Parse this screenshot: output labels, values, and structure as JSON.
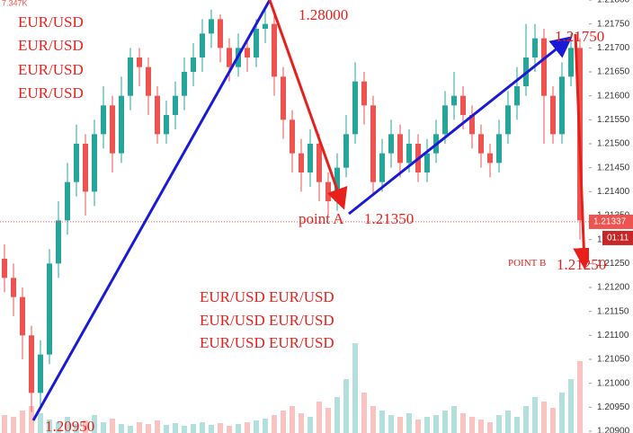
{
  "chart_data": {
    "type": "candlestick",
    "volume_label": "7.347K",
    "open": [
      1.2126,
      1.2122,
      1.2118,
      1.211,
      1.2098,
      1.2106,
      1.2125,
      1.2134,
      1.2142,
      1.215,
      1.214,
      1.2152,
      1.2158,
      1.2148,
      1.216,
      1.2168,
      1.2166,
      1.216,
      1.2152,
      1.2156,
      1.216,
      1.2165,
      1.2168,
      1.2173,
      1.2176,
      1.217,
      1.2166,
      1.217,
      1.2168,
      1.2174,
      1.2175,
      1.2164,
      1.2155,
      1.2148,
      1.2144,
      1.215,
      1.2142,
      1.2138,
      1.2145,
      1.2152,
      1.2163,
      1.2158,
      1.2142,
      1.2148,
      1.2152,
      1.2146,
      1.215,
      1.2144,
      1.2148,
      1.2152,
      1.2158,
      1.216,
      1.2156,
      1.2152,
      1.2148,
      1.2146,
      1.2152,
      1.2158,
      1.2162,
      1.2168,
      1.2172,
      1.216,
      1.2152,
      1.2164,
      1.217
    ],
    "high": [
      1.2129,
      1.2125,
      1.212,
      1.2112,
      1.2109,
      1.2128,
      1.2138,
      1.2146,
      1.2154,
      1.2152,
      1.2155,
      1.2162,
      1.216,
      1.2164,
      1.217,
      1.217,
      1.2168,
      1.2162,
      1.2159,
      1.2163,
      1.2168,
      1.2171,
      1.2176,
      1.2178,
      1.2177,
      1.2172,
      1.2173,
      1.2172,
      1.2176,
      1.2178,
      1.2177,
      1.2166,
      1.2157,
      1.2151,
      1.2153,
      1.2152,
      1.2144,
      1.2148,
      1.2156,
      1.2167,
      1.2165,
      1.216,
      1.2151,
      1.2155,
      1.2154,
      1.2153,
      1.2152,
      1.2151,
      1.2155,
      1.2161,
      1.2165,
      1.2162,
      1.2158,
      1.2154,
      1.215,
      1.2155,
      1.2161,
      1.2166,
      1.2175,
      1.2175,
      1.2174,
      1.2162,
      1.2167,
      1.2173,
      1.2172
    ],
    "low": [
      1.2119,
      1.2114,
      1.2105,
      1.2094,
      1.2095,
      1.2104,
      1.2122,
      1.2131,
      1.2139,
      1.2135,
      1.2137,
      1.2149,
      1.2144,
      1.2146,
      1.2157,
      1.2162,
      1.2156,
      1.215,
      1.215,
      1.2153,
      1.2157,
      1.2162,
      1.2165,
      1.217,
      1.2167,
      1.2163,
      1.2164,
      1.2165,
      1.2166,
      1.2171,
      1.216,
      1.2151,
      1.2144,
      1.214,
      1.2141,
      1.2138,
      1.2135,
      1.2136,
      1.2143,
      1.215,
      1.2154,
      1.2139,
      1.214,
      1.2145,
      1.2143,
      1.2144,
      1.2142,
      1.2142,
      1.2146,
      1.215,
      1.2155,
      1.2153,
      1.2149,
      1.2145,
      1.2143,
      1.2144,
      1.215,
      1.2155,
      1.216,
      1.2165,
      1.215,
      1.215,
      1.215,
      1.2162,
      1.213
    ],
    "close": [
      1.2122,
      1.2118,
      1.211,
      1.2098,
      1.2106,
      1.2125,
      1.2134,
      1.2142,
      1.215,
      1.214,
      1.2152,
      1.2158,
      1.2148,
      1.216,
      1.2168,
      1.2166,
      1.216,
      1.2152,
      1.2156,
      1.216,
      1.2165,
      1.2168,
      1.2173,
      1.2176,
      1.217,
      1.2166,
      1.217,
      1.2168,
      1.2174,
      1.2175,
      1.2164,
      1.2155,
      1.2148,
      1.2144,
      1.215,
      1.2142,
      1.2138,
      1.2145,
      1.2152,
      1.2163,
      1.2158,
      1.2142,
      1.2148,
      1.2152,
      1.2146,
      1.215,
      1.2144,
      1.2148,
      1.2152,
      1.2158,
      1.216,
      1.2156,
      1.2152,
      1.2148,
      1.2146,
      1.2152,
      1.2158,
      1.2162,
      1.2168,
      1.2172,
      1.216,
      1.2152,
      1.2164,
      1.217,
      1.2134
    ],
    "volume": [
      20,
      18,
      25,
      30,
      22,
      15,
      12,
      18,
      10,
      14,
      20,
      12,
      16,
      10,
      8,
      12,
      10,
      14,
      9,
      11,
      8,
      10,
      12,
      9,
      11,
      8,
      10,
      12,
      14,
      16,
      20,
      25,
      30,
      22,
      18,
      35,
      28,
      40,
      60,
      100,
      45,
      30,
      25,
      20,
      18,
      22,
      15,
      18,
      20,
      25,
      30,
      22,
      18,
      15,
      12,
      20,
      25,
      18,
      30,
      40,
      35,
      28,
      45,
      60,
      80
    ],
    "vlim": [
      0,
      100
    ],
    "up_color": "#26a69a",
    "down_color": "#ef5350",
    "ylim": [
      1.209,
      1.218
    ],
    "yticks": [
      {
        "value": 1.218,
        "label": "1.21800"
      },
      {
        "value": 1.2175,
        "label": "1.21750"
      },
      {
        "value": 1.217,
        "label": "1.21700"
      },
      {
        "value": 1.2165,
        "label": "1.21650"
      },
      {
        "value": 1.216,
        "label": "1.21600"
      },
      {
        "value": 1.2155,
        "label": "1.21550"
      },
      {
        "value": 1.215,
        "label": "1.21500"
      },
      {
        "value": 1.2145,
        "label": "1.21450"
      },
      {
        "value": 1.214,
        "label": "1.21400"
      },
      {
        "value": 1.2135,
        "label": "1.21350"
      },
      {
        "value": 1.213,
        "label": "1.21300"
      },
      {
        "value": 1.2125,
        "label": "1.21250"
      },
      {
        "value": 1.212,
        "label": "1.21200"
      },
      {
        "value": 1.2115,
        "label": "1.21150"
      },
      {
        "value": 1.211,
        "label": "1.21100"
      },
      {
        "value": 1.2105,
        "label": "1.21050"
      },
      {
        "value": 1.21,
        "label": "1.21000"
      },
      {
        "value": 1.2095,
        "label": "1.20950"
      },
      {
        "value": 1.209,
        "label": "1.20900"
      }
    ],
    "grid": false,
    "current_price": {
      "value": 1.21337,
      "label": "1.21337"
    },
    "countdown": "01:11",
    "annotations": {
      "left": [
        "EUR/USD",
        "EUR/USD",
        "EUR/USD",
        "EUR/USD"
      ],
      "center": [
        "EUR/USD EUR/USD",
        "EUR/USD EUR/USD",
        "EUR/USD EUR/USD"
      ],
      "top": "1.28000",
      "right_high": "1.21750",
      "point_a": "point A",
      "point_a_price": "1.21350",
      "point_b": "POINT B",
      "point_b_price": "1.21250",
      "low": "1.20950"
    }
  }
}
